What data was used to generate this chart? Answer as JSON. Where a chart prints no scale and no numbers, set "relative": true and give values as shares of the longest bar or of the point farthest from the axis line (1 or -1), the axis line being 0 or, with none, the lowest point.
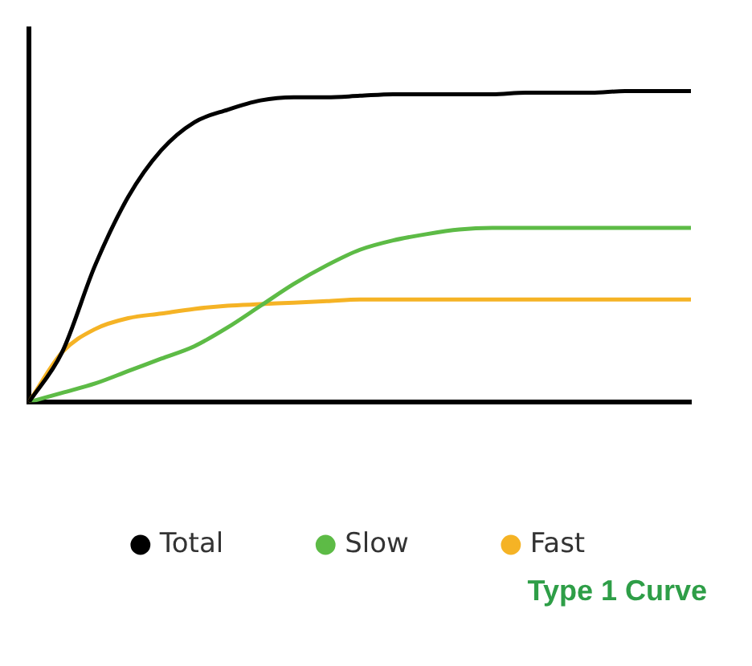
{
  "chart_data": {
    "type": "line",
    "relative": true,
    "legend": "bottom",
    "marker": "none",
    "line_style": "solid",
    "grid": false,
    "categories": [
      null,
      null,
      null,
      null,
      null,
      null,
      null,
      null,
      null,
      null,
      null,
      null,
      null,
      null,
      null,
      null,
      null,
      null,
      null,
      null,
      null
    ],
    "series": [
      {
        "name": "Total",
        "color": "#000000",
        "values": [
          0,
          0.16,
          0.44,
          0.66,
          0.81,
          0.9,
          0.94,
          0.97,
          0.98,
          0.98,
          0.985,
          0.99,
          0.99,
          0.99,
          0.99,
          0.995,
          0.995,
          0.995,
          1,
          1,
          1
        ]
      },
      {
        "name": "Slow",
        "color": "#5dbb46",
        "values": [
          0,
          0.03,
          0.06,
          0.1,
          0.14,
          0.18,
          0.24,
          0.31,
          0.38,
          0.44,
          0.49,
          0.52,
          0.54,
          0.555,
          0.56,
          0.56,
          0.56,
          0.56,
          0.56,
          0.56,
          0.56
        ]
      },
      {
        "name": "Fast",
        "color": "#f5b325",
        "values": [
          0,
          0.16,
          0.235,
          0.27,
          0.285,
          0.3,
          0.31,
          0.315,
          0.32,
          0.325,
          0.33,
          0.33,
          0.33,
          0.33,
          0.33,
          0.33,
          0.33,
          0.33,
          0.33,
          0.33,
          0.33
        ]
      }
    ],
    "annotations": [
      "Type 1 Curve"
    ]
  }
}
